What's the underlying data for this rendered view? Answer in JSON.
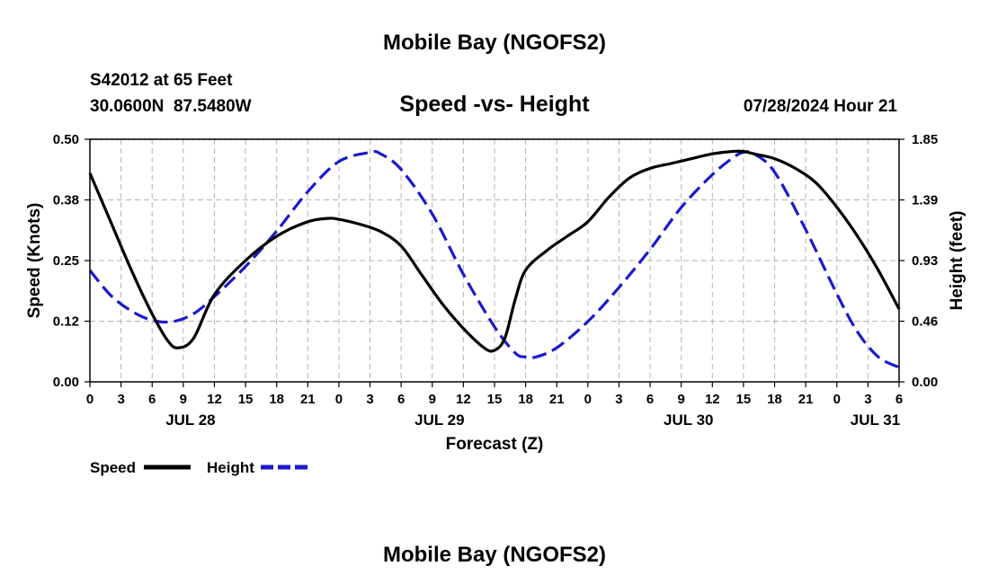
{
  "page": {
    "title": "Mobile Bay (NGOFS2)",
    "footer_title": "Mobile Bay (NGOFS2)",
    "station_line": "S42012 at 65 Feet",
    "coords_line": "30.0600N  87.5480W",
    "subtitle": "Speed -vs- Height",
    "timestamp": "07/28/2024 Hour 21"
  },
  "colors": {
    "speed": "#000000",
    "height": "#1a1acc",
    "grid": "#b4b4b4"
  },
  "chart_data": {
    "type": "line",
    "xlabel": "Forecast (Z)",
    "ylabel_left": "Speed (Knots)",
    "ylabel_right": "Height (feet)",
    "x_range": [
      0,
      78
    ],
    "left_ylim": [
      0,
      0.5
    ],
    "right_ylim": [
      0,
      1.85
    ],
    "left_ticks": [
      "0.00",
      "0.12",
      "0.25",
      "0.38",
      "0.50"
    ],
    "right_ticks": [
      "0.00",
      "0.46",
      "0.93",
      "1.39",
      "1.85"
    ],
    "x_ticks": [
      {
        "x": 0,
        "label": "0"
      },
      {
        "x": 3,
        "label": "3"
      },
      {
        "x": 6,
        "label": "6"
      },
      {
        "x": 9,
        "label": "9"
      },
      {
        "x": 12,
        "label": "12"
      },
      {
        "x": 15,
        "label": "15"
      },
      {
        "x": 18,
        "label": "18"
      },
      {
        "x": 21,
        "label": "21"
      },
      {
        "x": 24,
        "label": "0"
      },
      {
        "x": 27,
        "label": "3"
      },
      {
        "x": 30,
        "label": "6"
      },
      {
        "x": 33,
        "label": "9"
      },
      {
        "x": 36,
        "label": "12"
      },
      {
        "x": 39,
        "label": "15"
      },
      {
        "x": 42,
        "label": "18"
      },
      {
        "x": 45,
        "label": "21"
      },
      {
        "x": 48,
        "label": "0"
      },
      {
        "x": 51,
        "label": "3"
      },
      {
        "x": 54,
        "label": "6"
      },
      {
        "x": 57,
        "label": "9"
      },
      {
        "x": 60,
        "label": "12"
      },
      {
        "x": 63,
        "label": "15"
      },
      {
        "x": 66,
        "label": "18"
      },
      {
        "x": 69,
        "label": "21"
      },
      {
        "x": 72,
        "label": "0"
      },
      {
        "x": 75,
        "label": "3"
      },
      {
        "x": 78,
        "label": "6"
      }
    ],
    "date_labels": [
      {
        "x": 9.7,
        "label": "JUL 28"
      },
      {
        "x": 33.7,
        "label": "JUL 29"
      },
      {
        "x": 57.7,
        "label": "JUL 30"
      },
      {
        "x": 75.7,
        "label": "JUL 31"
      }
    ],
    "grid": true,
    "legend": "bottom-left",
    "series": [
      {
        "name": "Speed",
        "axis": "left",
        "style": "solid",
        "x": [
          0,
          2,
          4,
          6,
          7.5,
          8.5,
          10,
          12,
          15,
          18,
          21,
          23,
          24,
          26,
          28,
          30,
          32,
          34,
          36,
          38,
          39,
          40,
          41,
          42,
          44,
          46,
          48,
          50,
          52,
          54,
          56,
          58,
          60,
          62,
          63,
          64,
          66,
          68,
          70,
          72,
          74,
          76,
          78
        ],
        "values": [
          0.43,
          0.33,
          0.23,
          0.14,
          0.085,
          0.07,
          0.09,
          0.18,
          0.25,
          0.3,
          0.33,
          0.337,
          0.335,
          0.325,
          0.31,
          0.28,
          0.22,
          0.16,
          0.11,
          0.07,
          0.065,
          0.09,
          0.17,
          0.23,
          0.27,
          0.3,
          0.33,
          0.38,
          0.42,
          0.44,
          0.45,
          0.46,
          0.47,
          0.475,
          0.475,
          0.47,
          0.46,
          0.44,
          0.41,
          0.36,
          0.3,
          0.23,
          0.15
        ]
      },
      {
        "name": "Height",
        "axis": "right",
        "style": "dashed",
        "x": [
          0,
          2,
          4,
          6,
          8,
          10,
          12,
          15,
          18,
          21,
          24,
          27,
          28,
          30,
          33,
          36,
          39,
          41,
          42,
          43,
          45,
          48,
          51,
          54,
          57,
          60,
          62,
          63,
          64,
          66,
          69,
          72,
          74,
          76,
          78
        ],
        "values": [
          0.85,
          0.66,
          0.54,
          0.47,
          0.46,
          0.52,
          0.65,
          0.88,
          1.15,
          1.45,
          1.68,
          1.75,
          1.74,
          1.62,
          1.28,
          0.82,
          0.42,
          0.22,
          0.19,
          0.19,
          0.26,
          0.46,
          0.72,
          1.01,
          1.33,
          1.58,
          1.71,
          1.75,
          1.74,
          1.6,
          1.16,
          0.67,
          0.38,
          0.19,
          0.11
        ]
      }
    ]
  }
}
